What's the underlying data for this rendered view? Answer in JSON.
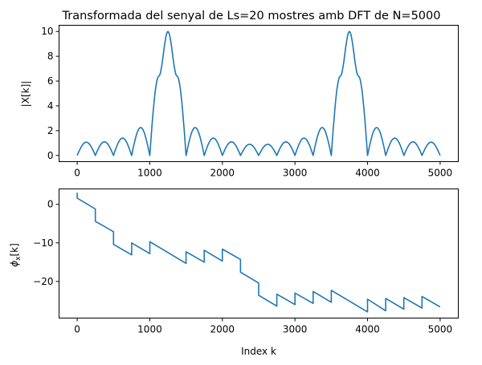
{
  "chart_data": [
    {
      "type": "line",
      "title": "Transformada del senyal de Ls=20 mostres amb DFT de N=5000",
      "xlabel": "",
      "ylabel": "|X[k]|",
      "xlim": [
        -250,
        5250
      ],
      "ylim": [
        -0.5,
        10.5
      ],
      "grid": false,
      "xticks": [
        0,
        1000,
        2000,
        3000,
        4000,
        5000
      ],
      "xtick_labels": [
        "0",
        "1000",
        "2000",
        "3000",
        "4000",
        "5000"
      ],
      "yticks": [
        0,
        2,
        4,
        6,
        8,
        10
      ],
      "ytick_labels": [
        "0",
        "2",
        "4",
        "6",
        "8",
        "10"
      ],
      "series": [
        {
          "color": "#1f77b4",
          "x": [
            0,
            125,
            250,
            375,
            500,
            625,
            750,
            875,
            1000,
            1125,
            1250,
            1375,
            1500,
            1625,
            1750,
            1875,
            2000,
            2125,
            2250,
            2375,
            2500,
            2625,
            2750,
            2875,
            3000,
            3125,
            3250,
            3375,
            3500,
            3625,
            3750,
            3875,
            4000,
            4125,
            4250,
            4375,
            4500,
            4625,
            4750,
            4875,
            5000
          ],
          "y": [
            0,
            1.07,
            0,
            1.1,
            0,
            1.4,
            0,
            2.25,
            0,
            6.4,
            10.0,
            6.4,
            0,
            2.25,
            0,
            1.4,
            0,
            1.1,
            0,
            0.9,
            0,
            0.9,
            0,
            1.1,
            0,
            1.4,
            0,
            2.25,
            0,
            6.4,
            10.0,
            6.4,
            0,
            2.25,
            0,
            1.4,
            0,
            1.1,
            0,
            1.07,
            0
          ]
        }
      ]
    },
    {
      "type": "line",
      "title": "",
      "xlabel": "Index k",
      "ylabel": "φx[k]",
      "xlim": [
        -250,
        5250
      ],
      "ylim": [
        -29.5,
        4.0
      ],
      "grid": false,
      "xticks": [
        0,
        1000,
        2000,
        3000,
        4000,
        5000
      ],
      "xtick_labels": [
        "0",
        "1000",
        "2000",
        "3000",
        "4000",
        "5000"
      ],
      "yticks": [
        0,
        -10,
        -20
      ],
      "ytick_labels": [
        "0",
        "−10",
        "−20"
      ],
      "series": [
        {
          "color": "#1f77b4",
          "x": [
            0,
            0,
            250,
            250,
            500,
            500,
            750,
            750,
            1000,
            1000,
            1500,
            1500,
            1750,
            1750,
            2000,
            2000,
            2250,
            2250,
            2500,
            2500,
            2750,
            2750,
            3000,
            3000,
            3250,
            3250,
            3500,
            3500,
            4000,
            4000,
            4250,
            4250,
            4500,
            4500,
            4750,
            4750,
            5000
          ],
          "y": [
            3.0,
            1.6,
            -1.2,
            -4.4,
            -7.1,
            -10.4,
            -13.1,
            -10.0,
            -12.8,
            -9.7,
            -15.3,
            -12.3,
            -15.0,
            -11.9,
            -14.7,
            -11.6,
            -14.3,
            -17.6,
            -20.4,
            -23.6,
            -26.4,
            -23.3,
            -26.0,
            -23.0,
            -25.7,
            -22.6,
            -25.4,
            -22.3,
            -27.9,
            -24.6,
            -27.6,
            -24.4,
            -27.2,
            -24.2,
            -26.9,
            -23.9,
            -26.6
          ]
        }
      ]
    }
  ]
}
